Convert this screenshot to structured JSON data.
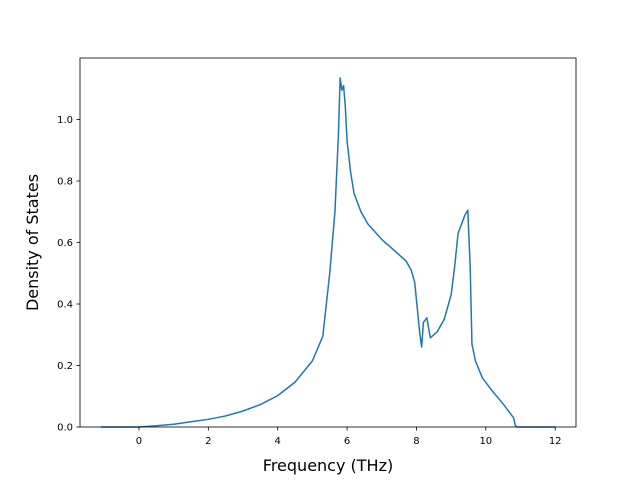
{
  "chart_data": {
    "type": "line",
    "title": "",
    "xlabel": "Frequency (THz)",
    "ylabel": "Density of States",
    "xlim": [
      -1.7,
      12.6
    ],
    "ylim": [
      0.0,
      1.2
    ],
    "xticks": [
      0,
      2,
      4,
      6,
      8,
      10,
      12
    ],
    "yticks": [
      0.0,
      0.2,
      0.4,
      0.6,
      0.8,
      1.0
    ],
    "xtick_labels": [
      "0",
      "2",
      "4",
      "6",
      "8",
      "10",
      "12"
    ],
    "ytick_labels": [
      "0.0",
      "0.2",
      "0.4",
      "0.6",
      "0.8",
      "1.0"
    ],
    "grid": false,
    "legend": "none",
    "series": [
      {
        "color": "#1f77b4",
        "x": [
          -1.1,
          -0.5,
          0.0,
          0.5,
          1.0,
          1.5,
          2.0,
          2.5,
          3.0,
          3.5,
          4.0,
          4.5,
          5.0,
          5.3,
          5.5,
          5.65,
          5.75,
          5.8,
          5.85,
          5.9,
          5.95,
          6.0,
          6.1,
          6.2,
          6.4,
          6.6,
          7.0,
          7.4,
          7.7,
          7.85,
          7.95,
          8.1,
          8.15,
          8.2,
          8.3,
          8.4,
          8.6,
          8.8,
          9.0,
          9.1,
          9.2,
          9.3,
          9.4,
          9.48,
          9.55,
          9.6,
          9.7,
          9.9,
          10.2,
          10.5,
          10.8,
          10.85,
          10.9,
          11.2,
          11.6,
          12.0
        ],
        "y": [
          0.0,
          0.0,
          0.0,
          0.004,
          0.009,
          0.017,
          0.025,
          0.036,
          0.052,
          0.073,
          0.102,
          0.146,
          0.215,
          0.295,
          0.5,
          0.7,
          0.95,
          1.135,
          1.095,
          1.11,
          1.04,
          0.93,
          0.83,
          0.76,
          0.7,
          0.66,
          0.61,
          0.57,
          0.54,
          0.51,
          0.47,
          0.3,
          0.26,
          0.34,
          0.355,
          0.29,
          0.31,
          0.35,
          0.43,
          0.52,
          0.63,
          0.66,
          0.69,
          0.705,
          0.52,
          0.27,
          0.215,
          0.16,
          0.115,
          0.075,
          0.03,
          0.005,
          0.0,
          0.0,
          0.0,
          0.0
        ]
      }
    ]
  }
}
